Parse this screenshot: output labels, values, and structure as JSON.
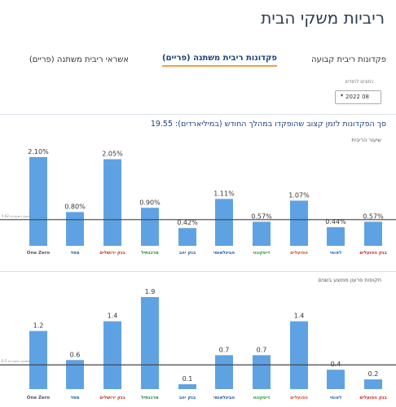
{
  "page": {
    "title": "ריביות משקי הבית"
  },
  "tabs": [
    {
      "label": "פקדונות ריבית קבועה",
      "active": false
    },
    {
      "label": "פקדונות ריבית משתנה (פריים)",
      "active": true
    },
    {
      "label": "אשראי ריבית משתנה (פריים)",
      "active": false
    }
  ],
  "month_filter": {
    "label": "נתונים לחודש",
    "value": "2022 08",
    "icon": "chevron-down-icon"
  },
  "chart_header": {
    "title": "סך הפקדונות לזמן קצוב שהופקדו במהלך החודש (במיליארדים): 19.55"
  },
  "banks": [
    {
      "name": "One Zero",
      "color": "#555555",
      "icon": "onezero-logo"
    },
    {
      "name": "מסד",
      "color": "#1d5a8c",
      "icon": "masad-logo"
    },
    {
      "name": "בנק ירושלים",
      "color": "#c0392b",
      "icon": "jerusalem-logo"
    },
    {
      "name": "מרכנתיל",
      "color": "#1e8a3a",
      "icon": "mercantile-logo"
    },
    {
      "name": "בנק יהב",
      "color": "#2c5aa0",
      "icon": "yahav-logo"
    },
    {
      "name": "הבינלאומי",
      "color": "#1a4f9c",
      "icon": "fibi-logo"
    },
    {
      "name": "דיסקונט",
      "color": "#2fa23a",
      "icon": "discount-logo"
    },
    {
      "name": "הפועלים",
      "color": "#d64a2b",
      "icon": "hapoalim-logo"
    },
    {
      "name": "לאומי",
      "color": "#2a6db5",
      "icon": "leumi-logo"
    },
    {
      "name": "בנק הפועלים",
      "color": "#d0292a",
      "icon": "bank-logo"
    }
  ],
  "colors": {
    "bar": "#5fa2e3",
    "avg_line": "#444444",
    "accent": "#e8a24a",
    "title": "#1c3f7a"
  },
  "chart_data": [
    {
      "type": "bar",
      "title": "שיעור הריבית",
      "categories": [
        "One Zero",
        "מסד",
        "בנק ירושלים",
        "מרכנתיל",
        "בנק יהב",
        "הבינלאומי",
        "דיסקונט",
        "הפועלים",
        "לאומי",
        "בנק הפועלים"
      ],
      "values": [
        2.1,
        0.8,
        2.05,
        0.9,
        0.42,
        1.11,
        0.57,
        1.07,
        0.44,
        0.57
      ],
      "value_labels": [
        "2.10%",
        "0.80%",
        "2.05%",
        "0.90%",
        "0.42%",
        "1.11%",
        "0.57%",
        "1.07%",
        "0.44%",
        "0.57%"
      ],
      "average": 0.62,
      "average_label": "ממוצע המערכת 0.62",
      "ylim": [
        0,
        2.35
      ]
    },
    {
      "type": "bar",
      "title": "תקופות פרעון ממוצע בשנים",
      "categories": [
        "One Zero",
        "מסד",
        "בנק ירושלים",
        "מרכנתיל",
        "בנק יהב",
        "הבינלאומי",
        "דיסקונט",
        "הפועלים",
        "לאומי",
        "בנק הפועלים"
      ],
      "values": [
        1.2,
        0.6,
        1.4,
        1.9,
        0.1,
        0.7,
        0.7,
        1.4,
        0.4,
        0.2
      ],
      "value_labels": [
        "1.2",
        "0.6",
        "1.4",
        "1.9",
        "0.1",
        "0.7",
        "0.7",
        "1.4",
        "0.4",
        "0.2"
      ],
      "average": 0.5,
      "average_label": "ממוצע המערכת 0.5",
      "ylim": [
        0,
        2.05
      ]
    }
  ]
}
